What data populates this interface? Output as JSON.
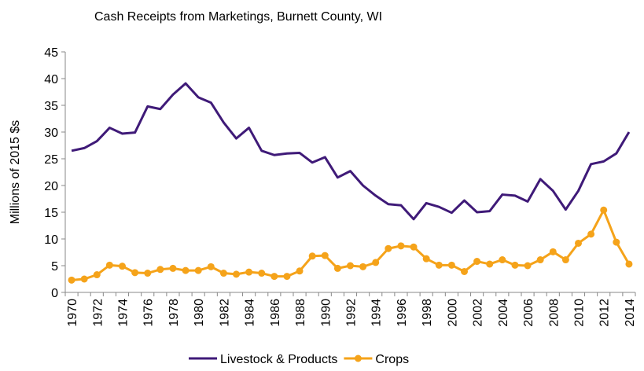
{
  "chart_data": {
    "type": "line",
    "title": "Cash Receipts from Marketings, Burnett County, WI",
    "y_label": "Millions of 2015 $s",
    "categories": [
      "1970",
      null,
      "1972",
      null,
      "1974",
      null,
      "1976",
      null,
      "1978",
      null,
      "1980",
      null,
      "1982",
      null,
      "1984",
      null,
      "1986",
      null,
      "1988",
      null,
      "1990",
      null,
      "1992",
      null,
      "1994",
      null,
      "1996",
      null,
      "1998",
      null,
      "2000",
      null,
      "2002",
      null,
      "2004",
      null,
      "2006",
      null,
      "2008",
      null,
      "2010",
      null,
      "2012",
      null,
      "2014"
    ],
    "series": [
      {
        "name": "Livestock & Products",
        "color": "#3f1a78",
        "marker": false,
        "values": [
          26.5,
          27,
          28.3,
          30.8,
          29.7,
          29.9,
          34.8,
          34.3,
          37,
          39.1,
          36.5,
          35.5,
          31.8,
          28.8,
          30.8,
          26.5,
          25.7,
          26,
          26.1,
          24.3,
          25.3,
          21.5,
          22.7,
          20,
          18.1,
          16.5,
          16.3,
          13.7,
          16.7,
          16,
          14.9,
          17.2,
          15,
          15.2,
          18.3,
          18.1,
          17,
          21.2,
          19,
          15.5,
          19,
          24,
          24.5,
          26,
          30
        ]
      },
      {
        "name": "Crops",
        "color": "#f5a31a",
        "marker": true,
        "values": [
          2.3,
          2.5,
          3.3,
          5.1,
          4.9,
          3.7,
          3.6,
          4.3,
          4.5,
          4.1,
          4.1,
          4.8,
          3.6,
          3.4,
          3.8,
          3.6,
          3.0,
          3.0,
          4.0,
          6.8,
          6.9,
          4.5,
          5.0,
          4.8,
          5.6,
          8.2,
          8.7,
          8.5,
          6.3,
          5.1,
          5.1,
          3.9,
          5.8,
          5.3,
          6.1,
          5.1,
          5.0,
          6.1,
          7.6,
          6.1,
          9.2,
          10.9,
          15.4,
          9.4,
          5.3
        ]
      }
    ],
    "ylim": [
      0,
      45
    ],
    "yticks": [
      0,
      5,
      10,
      15,
      20,
      25,
      30,
      35,
      40,
      45
    ],
    "grid": false,
    "legend": "bottom"
  }
}
